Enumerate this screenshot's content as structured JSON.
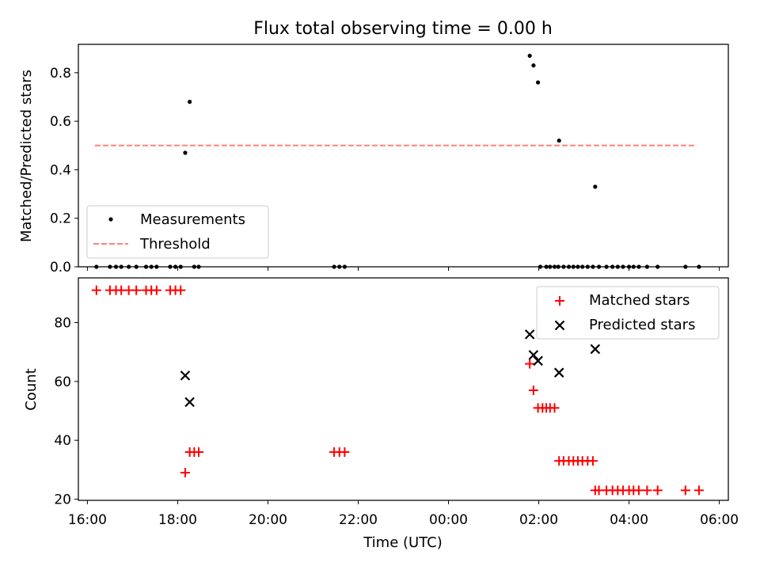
{
  "title": "Flux total observing time = 0.00 h",
  "colors": {
    "measurement": "#000000",
    "threshold": "#ff8080",
    "matched": "#ff0000",
    "predicted": "#000000"
  },
  "chart_data": [
    {
      "type": "scatter",
      "title": "Flux total observing time = 0.00 h",
      "xlabel": "",
      "ylabel": "Matched/Predicted stars",
      "xlim": [
        "16:00",
        "06:00"
      ],
      "ylim": [
        0,
        0.9
      ],
      "yticks": [
        "0.0",
        "0.2",
        "0.4",
        "0.6",
        "0.8"
      ],
      "legend": {
        "placement": "lower-left",
        "entries": [
          {
            "label": "Measurements",
            "marker": "dot"
          },
          {
            "label": "Threshold",
            "marker": "dashed-line"
          }
        ]
      },
      "threshold": {
        "value": 0.5,
        "x_start": "16:10",
        "x_end": "05:30"
      },
      "series": [
        {
          "name": "Measurements",
          "points": [
            [
              "16:12",
              0
            ],
            [
              "16:30",
              0
            ],
            [
              "16:38",
              0
            ],
            [
              "16:45",
              0
            ],
            [
              "16:55",
              0
            ],
            [
              "17:05",
              0
            ],
            [
              "17:18",
              0
            ],
            [
              "17:25",
              0
            ],
            [
              "17:32",
              0
            ],
            [
              "17:50",
              0
            ],
            [
              "17:57",
              0
            ],
            [
              "18:04",
              0
            ],
            [
              "18:10",
              0.47
            ],
            [
              "18:16",
              0.68
            ],
            [
              "18:22",
              0
            ],
            [
              "18:28",
              0
            ],
            [
              "21:28",
              0
            ],
            [
              "21:35",
              0
            ],
            [
              "21:42",
              0
            ],
            [
              "01:48",
              0.87
            ],
            [
              "01:53",
              0.83
            ],
            [
              "01:59",
              0.76
            ],
            [
              "02:02",
              0
            ],
            [
              "02:10",
              0
            ],
            [
              "02:15",
              0
            ],
            [
              "02:21",
              0
            ],
            [
              "02:26",
              0
            ],
            [
              "02:27",
              0.52
            ],
            [
              "02:33",
              0
            ],
            [
              "02:40",
              0
            ],
            [
              "02:46",
              0
            ],
            [
              "02:52",
              0
            ],
            [
              "02:58",
              0
            ],
            [
              "03:05",
              0
            ],
            [
              "03:12",
              0
            ],
            [
              "03:15",
              0.33
            ],
            [
              "03:20",
              0
            ],
            [
              "03:30",
              0
            ],
            [
              "03:38",
              0
            ],
            [
              "03:45",
              0
            ],
            [
              "03:52",
              0
            ],
            [
              "04:00",
              0
            ],
            [
              "04:06",
              0
            ],
            [
              "04:13",
              0
            ],
            [
              "04:24",
              0
            ],
            [
              "04:38",
              0
            ],
            [
              "05:15",
              0
            ],
            [
              "05:33",
              0
            ]
          ]
        }
      ]
    },
    {
      "type": "scatter",
      "title": "",
      "xlabel": "Time (UTC)",
      "ylabel": "Count",
      "xlim": [
        "16:00",
        "06:00"
      ],
      "ylim": [
        20,
        95
      ],
      "xticks": [
        "16:00",
        "18:00",
        "20:00",
        "22:00",
        "00:00",
        "02:00",
        "04:00",
        "06:00"
      ],
      "yticks": [
        "20",
        "40",
        "60",
        "80"
      ],
      "legend": {
        "placement": "upper-right",
        "entries": [
          {
            "label": "Matched stars",
            "marker": "plus"
          },
          {
            "label": "Predicted stars",
            "marker": "x"
          }
        ]
      },
      "series": [
        {
          "name": "Matched stars",
          "points": [
            [
              "16:12",
              91
            ],
            [
              "16:30",
              91
            ],
            [
              "16:38",
              91
            ],
            [
              "16:45",
              91
            ],
            [
              "16:55",
              91
            ],
            [
              "17:05",
              91
            ],
            [
              "17:18",
              91
            ],
            [
              "17:25",
              91
            ],
            [
              "17:32",
              91
            ],
            [
              "17:50",
              91
            ],
            [
              "17:57",
              91
            ],
            [
              "18:04",
              91
            ],
            [
              "18:10",
              29
            ],
            [
              "18:16",
              36
            ],
            [
              "18:22",
              36
            ],
            [
              "18:28",
              36
            ],
            [
              "21:28",
              36
            ],
            [
              "21:35",
              36
            ],
            [
              "21:42",
              36
            ],
            [
              "01:48",
              66
            ],
            [
              "01:53",
              57
            ],
            [
              "01:59",
              51
            ],
            [
              "02:05",
              51
            ],
            [
              "02:10",
              51
            ],
            [
              "02:15",
              51
            ],
            [
              "02:21",
              51
            ],
            [
              "02:27",
              33
            ],
            [
              "02:33",
              33
            ],
            [
              "02:40",
              33
            ],
            [
              "02:46",
              33
            ],
            [
              "02:52",
              33
            ],
            [
              "02:58",
              33
            ],
            [
              "03:05",
              33
            ],
            [
              "03:12",
              33
            ],
            [
              "03:15",
              23
            ],
            [
              "03:20",
              23
            ],
            [
              "03:30",
              23
            ],
            [
              "03:38",
              23
            ],
            [
              "03:45",
              23
            ],
            [
              "03:52",
              23
            ],
            [
              "04:00",
              23
            ],
            [
              "04:06",
              23
            ],
            [
              "04:13",
              23
            ],
            [
              "04:24",
              23
            ],
            [
              "04:38",
              23
            ],
            [
              "05:15",
              23
            ],
            [
              "05:33",
              23
            ]
          ]
        },
        {
          "name": "Predicted stars",
          "points": [
            [
              "18:10",
              62
            ],
            [
              "18:16",
              53
            ],
            [
              "01:48",
              76
            ],
            [
              "01:53",
              69
            ],
            [
              "01:59",
              67
            ],
            [
              "02:27",
              63
            ],
            [
              "03:15",
              71
            ]
          ]
        }
      ]
    }
  ]
}
